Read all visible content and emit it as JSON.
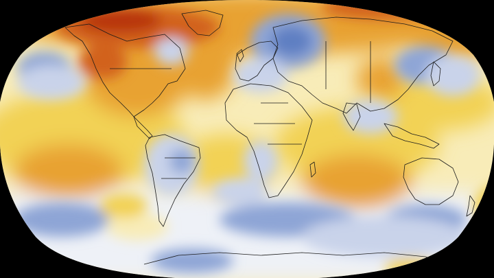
{
  "map": {
    "projection": "robinson",
    "background_color": "#000000",
    "colors": {
      "deep_red": "#b8360a",
      "red_orange": "#d2621c",
      "orange": "#e8a233",
      "yellow": "#f2d255",
      "pale_yellow": "#f8ecb8",
      "white": "#eef1f7",
      "pale_blue": "#c9d3ea",
      "blue": "#8ea5d6",
      "deep_blue": "#5f7fc2"
    },
    "outline_color": "#1a1a1a"
  }
}
